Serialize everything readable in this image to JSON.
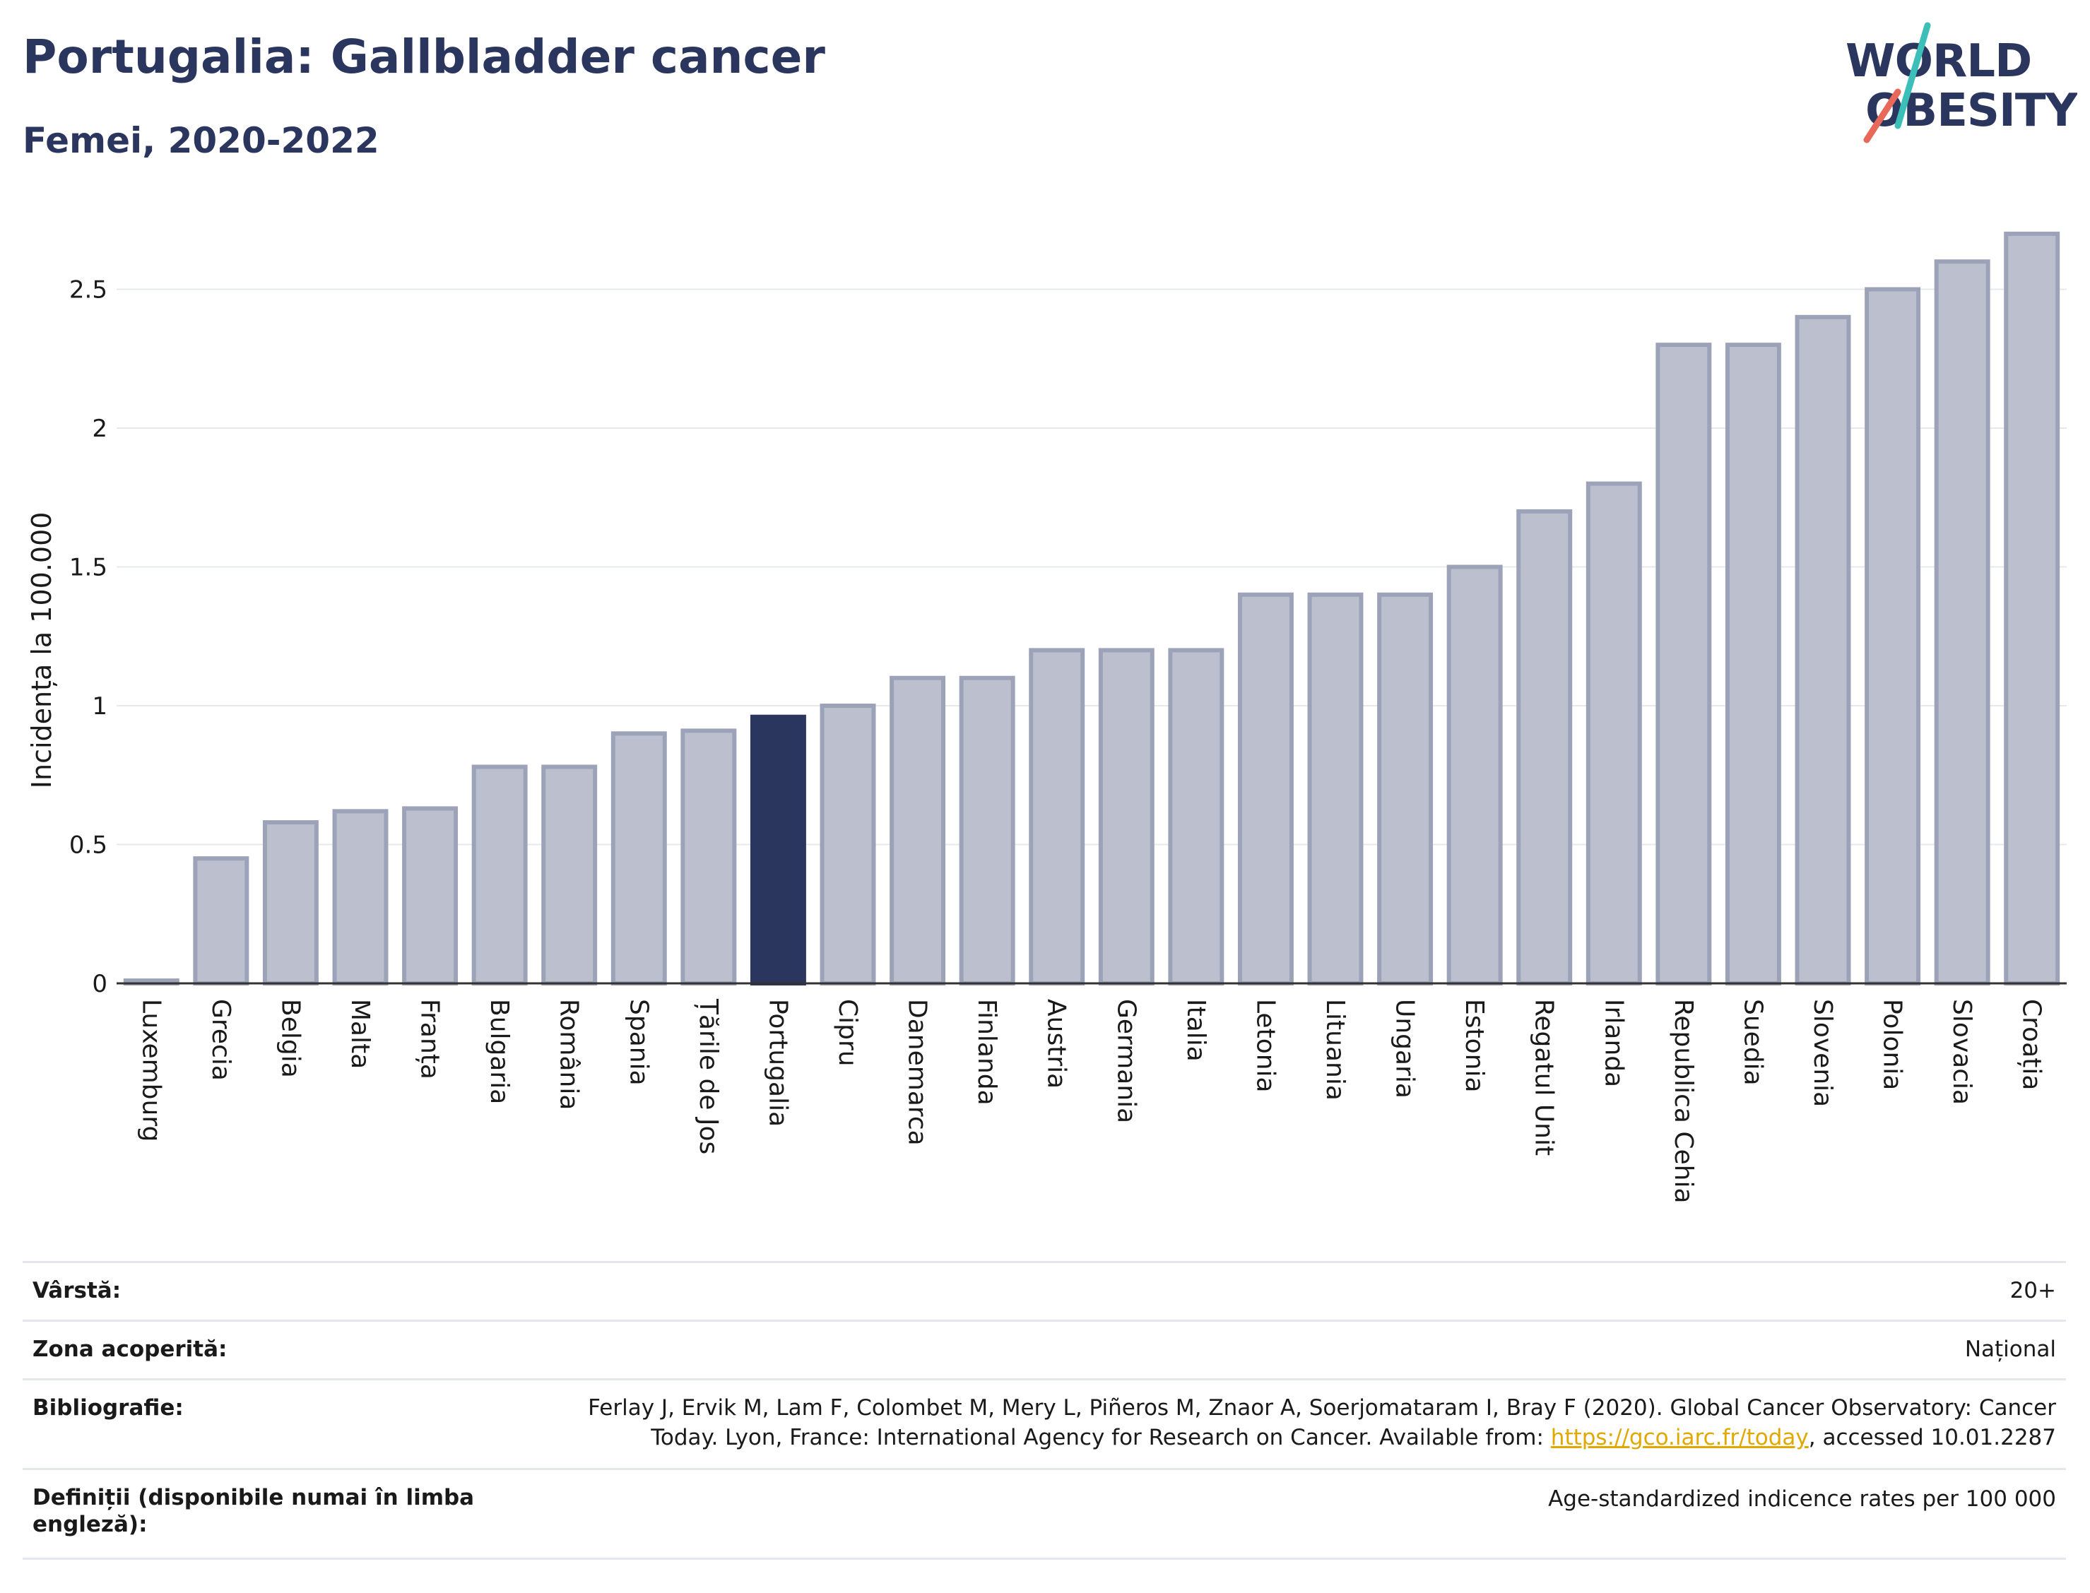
{
  "header": {
    "title": "Portugalia: Gallbladder cancer",
    "subtitle": "Femei, 2020-2022"
  },
  "logo": {
    "line1": "WORLD",
    "line2": "OBESITY"
  },
  "colors": {
    "bar": "#bcc0ce",
    "bar_border": "#9ca2b8",
    "highlight": "#2b365f",
    "grid": "#e6e8ee",
    "axis": "#333333",
    "logo_text": "#2b365f",
    "logo_slash_top": "#3bbfb8",
    "logo_slash_bottom": "#e8685a"
  },
  "chart_data": {
    "type": "bar",
    "categories": [
      "Luxemburg",
      "Grecia",
      "Belgia",
      "Malta",
      "Franța",
      "Bulgaria",
      "România",
      "Spania",
      "Țările de Jos",
      "Portugalia",
      "Cipru",
      "Danemarca",
      "Finlanda",
      "Austria",
      "Germania",
      "Italia",
      "Letonia",
      "Lituania",
      "Ungaria",
      "Estonia",
      "Regatul Unit",
      "Irlanda",
      "Republica Cehia",
      "Suedia",
      "Slovenia",
      "Polonia",
      "Slovacia",
      "Croația"
    ],
    "values": [
      0.01,
      0.45,
      0.58,
      0.62,
      0.63,
      0.78,
      0.78,
      0.9,
      0.91,
      0.96,
      1.0,
      1.1,
      1.1,
      1.2,
      1.2,
      1.2,
      1.4,
      1.4,
      1.4,
      1.5,
      1.7,
      1.8,
      2.3,
      2.3,
      2.4,
      2.5,
      2.6,
      2.7
    ],
    "highlight": "Portugalia",
    "ylabel": "Incidența la 100.000",
    "xlabel": "",
    "ylim": [
      0,
      2.7
    ],
    "yticks": [
      0,
      0.5,
      1,
      1.5,
      2,
      2.5
    ],
    "ytick_labels": [
      "0",
      "0.5",
      "1",
      "1.5",
      "2",
      "2.5"
    ],
    "grid": true
  },
  "meta": {
    "age_label": "Vârstă:",
    "age_value": "20+",
    "coverage_label": "Zona acoperită:",
    "coverage_value": "Național",
    "biblio_label": "Bibliografie:",
    "biblio_line1": "Ferlay J, Ervik M, Lam F, Colombet M, Mery L, Piñeros M, Znaor A, Soerjomataram I, Bray F (2020). Global Cancer Observatory: Cancer",
    "biblio_line2_pre": "Today. Lyon, France: International Agency for Research on Cancer. Available from: ",
    "biblio_link": "https://gco.iarc.fr/today",
    "biblio_line2_post": ", accessed 10.01.2287",
    "definitions_label_1": "Definiții (disponibile numai în limba",
    "definitions_label_2": "engleză):",
    "definitions_value": "Age-standardized indicence rates per 100 000"
  }
}
